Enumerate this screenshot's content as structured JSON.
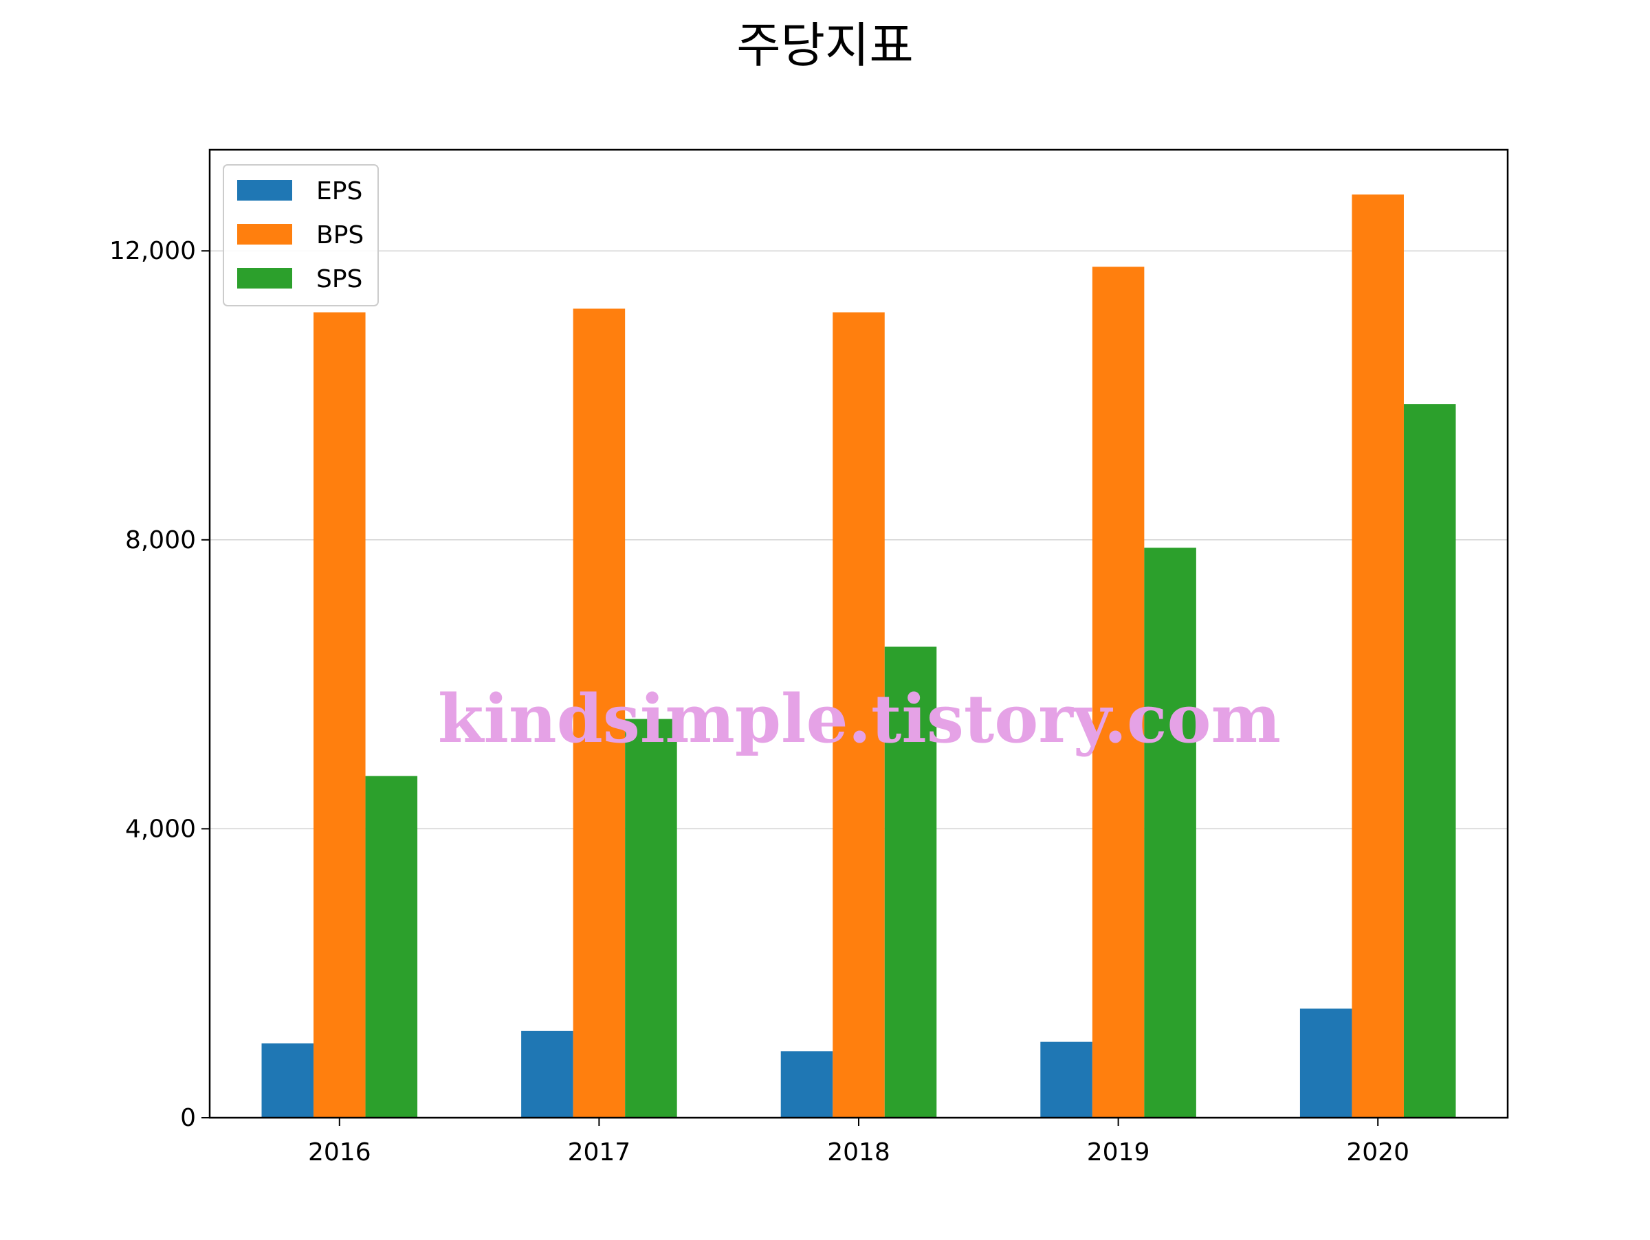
{
  "chart_data": {
    "type": "bar",
    "title": "주당지표",
    "xlabel": "",
    "ylabel": "",
    "categories": [
      "2016",
      "2017",
      "2018",
      "2019",
      "2020"
    ],
    "series": [
      {
        "name": "EPS",
        "color": "#1f77b4",
        "values": [
          1030,
          1200,
          920,
          1050,
          1510
        ]
      },
      {
        "name": "BPS",
        "color": "#ff7f0e",
        "values": [
          11150,
          11200,
          11150,
          11780,
          12780
        ]
      },
      {
        "name": "SPS",
        "color": "#2ca02c",
        "values": [
          4730,
          5520,
          6520,
          7890,
          9880
        ]
      }
    ],
    "ylim": [
      0,
      13400
    ],
    "yticks": [
      0,
      4000,
      8000,
      12000
    ],
    "ytick_labels": [
      "0",
      "4,000",
      "8,000",
      "12,000"
    ],
    "grid": "y",
    "legend_position": "upper-left"
  },
  "watermark": "kindsimple.tistory.com"
}
